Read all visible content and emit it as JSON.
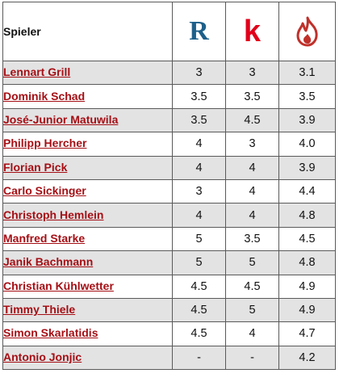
{
  "table": {
    "header": {
      "player_label": "Spieler",
      "sources": [
        {
          "icon": "r-logo-icon",
          "glyph": "R",
          "color": "#1d5f8a"
        },
        {
          "icon": "k-logo-icon",
          "glyph": "k",
          "color": "#e1001a"
        },
        {
          "icon": "flame-icon",
          "color": "#c0302a"
        }
      ]
    },
    "rows": [
      {
        "player": "Lennart Grill",
        "r": "3",
        "k": "3",
        "f": "3.1"
      },
      {
        "player": "Dominik Schad",
        "r": "3.5",
        "k": "3.5",
        "f": "3.5"
      },
      {
        "player": "José-Junior Matuwila",
        "r": "3.5",
        "k": "4.5",
        "f": "3.9"
      },
      {
        "player": "Philipp Hercher",
        "r": "4",
        "k": "3",
        "f": "4.0"
      },
      {
        "player": "Florian Pick",
        "r": "4",
        "k": "4",
        "f": "3.9"
      },
      {
        "player": "Carlo Sickinger",
        "r": "3",
        "k": "4",
        "f": "4.4"
      },
      {
        "player": "Christoph Hemlein",
        "r": "4",
        "k": "4",
        "f": "4.8"
      },
      {
        "player": "Manfred Starke",
        "r": "5",
        "k": "3.5",
        "f": "4.5"
      },
      {
        "player": "Janik Bachmann",
        "r": "5",
        "k": "5",
        "f": "4.8"
      },
      {
        "player": "Christian Kühlwetter",
        "r": "4.5",
        "k": "4.5",
        "f": "4.9"
      },
      {
        "player": "Timmy Thiele",
        "r": "4.5",
        "k": "5",
        "f": "4.9"
      },
      {
        "player": "Simon Skarlatidis",
        "r": "4.5",
        "k": "4",
        "f": "4.7"
      },
      {
        "player": "Antonio Jonjic",
        "r": "-",
        "k": "-",
        "f": "4.2"
      }
    ]
  }
}
